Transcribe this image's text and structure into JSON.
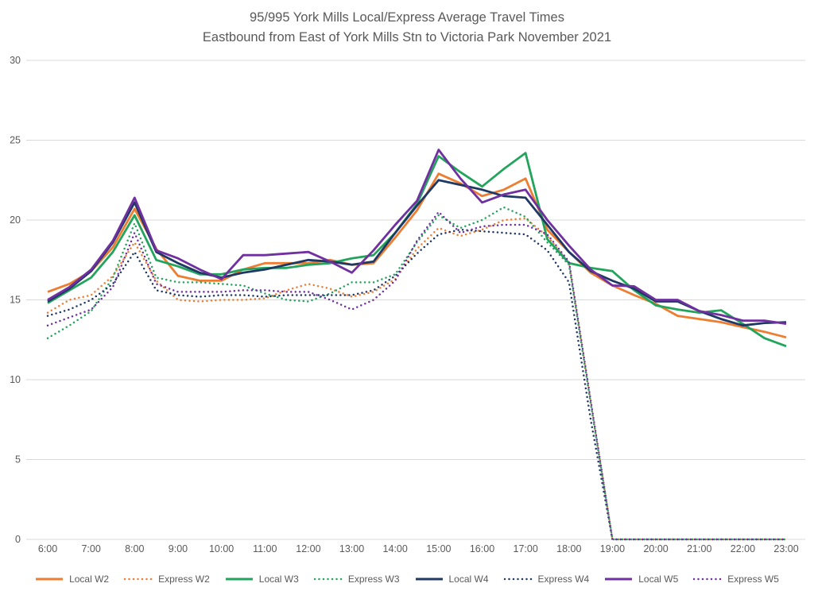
{
  "chart_data": {
    "type": "line",
    "title": "95/995 York Mills Local/Express Average Travel Times",
    "subtitle": "Eastbound from East of York Mills Stn to Victoria Park November 2021",
    "x_hours_start": 6,
    "x_hours_end": 23,
    "x_step_hours": 0.5,
    "x_tick_labels": [
      "6:00",
      "7:00",
      "8:00",
      "9:00",
      "10:00",
      "11:00",
      "12:00",
      "13:00",
      "14:00",
      "15:00",
      "16:00",
      "17:00",
      "18:00",
      "19:00",
      "20:00",
      "21:00",
      "22:00",
      "23:00"
    ],
    "ylabel": "",
    "xlabel": "",
    "ylim": [
      0,
      30
    ],
    "y_ticks": [
      0,
      5,
      10,
      15,
      20,
      25,
      30
    ],
    "grid": "horizontal-only",
    "gridline_color": "#D9D9D9",
    "text_color": "#595959",
    "legend_position": "bottom",
    "series": [
      {
        "name": "Local W2",
        "color": "#ED7D31",
        "style": "solid",
        "values": [
          15.5,
          16.0,
          16.8,
          18.3,
          20.7,
          18.2,
          16.5,
          16.2,
          16.2,
          16.9,
          17.3,
          17.3,
          17.3,
          17.5,
          17.2,
          17.3,
          18.9,
          20.6,
          22.9,
          22.3,
          21.5,
          21.9,
          22.6,
          19.4,
          18.0,
          16.7,
          15.9,
          15.3,
          14.75,
          14.0,
          13.8,
          13.6,
          13.3,
          13.0,
          12.65
        ]
      },
      {
        "name": "Express W2",
        "color": "#ED7D31",
        "style": "dotted",
        "values": [
          14.2,
          15.0,
          15.3,
          16.5,
          18.6,
          16.2,
          15.0,
          14.9,
          15.0,
          15.0,
          15.1,
          15.6,
          16.0,
          15.7,
          15.2,
          15.5,
          16.3,
          18.2,
          19.5,
          19.0,
          19.4,
          20.0,
          20.1,
          19.0,
          17.3,
          8.6,
          0,
          0,
          0,
          0,
          0,
          0,
          0,
          0,
          0
        ]
      },
      {
        "name": "Local W3",
        "color": "#22A45C",
        "style": "solid",
        "values": [
          14.8,
          15.6,
          16.4,
          18.0,
          20.3,
          17.5,
          17.1,
          16.6,
          16.6,
          16.9,
          17.0,
          17.0,
          17.2,
          17.3,
          17.6,
          17.8,
          19.2,
          21.0,
          24.0,
          23.0,
          22.1,
          23.2,
          24.2,
          18.8,
          17.3,
          17.0,
          16.8,
          15.6,
          14.65,
          14.4,
          14.2,
          14.35,
          13.5,
          12.6,
          12.1
        ]
      },
      {
        "name": "Express W3",
        "color": "#22A45C",
        "style": "dotted",
        "values": [
          12.6,
          13.4,
          14.3,
          16.4,
          19.8,
          16.4,
          16.1,
          16.1,
          16.0,
          15.9,
          15.4,
          15.0,
          14.9,
          15.4,
          16.1,
          16.1,
          16.6,
          18.6,
          20.3,
          19.5,
          20.0,
          20.8,
          20.2,
          18.6,
          17.2,
          8.5,
          0,
          0,
          0,
          0,
          0,
          0,
          0,
          0,
          0
        ]
      },
      {
        "name": "Local W4",
        "color": "#1F3864",
        "style": "solid",
        "values": [
          14.9,
          15.7,
          16.8,
          18.6,
          21.1,
          18.0,
          17.3,
          16.7,
          16.4,
          16.7,
          16.9,
          17.2,
          17.5,
          17.4,
          17.2,
          17.4,
          19.2,
          20.9,
          22.5,
          22.2,
          21.9,
          21.5,
          21.4,
          19.7,
          18.0,
          16.8,
          16.2,
          15.7,
          14.9,
          14.9,
          14.3,
          13.8,
          13.4,
          13.55,
          13.6
        ]
      },
      {
        "name": "Express W4",
        "color": "#1F3864",
        "style": "dotted",
        "values": [
          14.0,
          14.4,
          15.0,
          16.0,
          18.0,
          15.6,
          15.3,
          15.2,
          15.3,
          15.3,
          15.2,
          15.3,
          15.3,
          15.3,
          15.3,
          15.6,
          16.5,
          17.9,
          19.1,
          19.4,
          19.3,
          19.2,
          19.1,
          18.1,
          16.1,
          7.5,
          0,
          0,
          0,
          0,
          0,
          0,
          0,
          0,
          0
        ]
      },
      {
        "name": "Local W5",
        "color": "#7030A0",
        "style": "solid",
        "values": [
          15.0,
          15.8,
          16.9,
          18.7,
          21.4,
          18.1,
          17.6,
          16.9,
          16.3,
          17.8,
          17.8,
          17.9,
          18.0,
          17.4,
          16.7,
          18.1,
          19.7,
          21.2,
          24.4,
          22.6,
          21.1,
          21.6,
          21.9,
          20.0,
          18.4,
          16.9,
          15.9,
          15.85,
          15.0,
          15.0,
          14.3,
          14.05,
          13.7,
          13.7,
          13.5
        ]
      },
      {
        "name": "Express W5",
        "color": "#7030A0",
        "style": "dotted",
        "values": [
          13.4,
          13.9,
          14.4,
          15.8,
          19.2,
          16.0,
          15.5,
          15.5,
          15.5,
          15.6,
          15.6,
          15.5,
          15.5,
          15.0,
          14.4,
          15.0,
          16.2,
          18.7,
          20.5,
          19.2,
          19.6,
          19.7,
          19.7,
          19.1,
          17.4,
          8.7,
          0,
          0,
          0,
          0,
          0,
          0,
          0,
          0,
          0
        ]
      }
    ]
  }
}
